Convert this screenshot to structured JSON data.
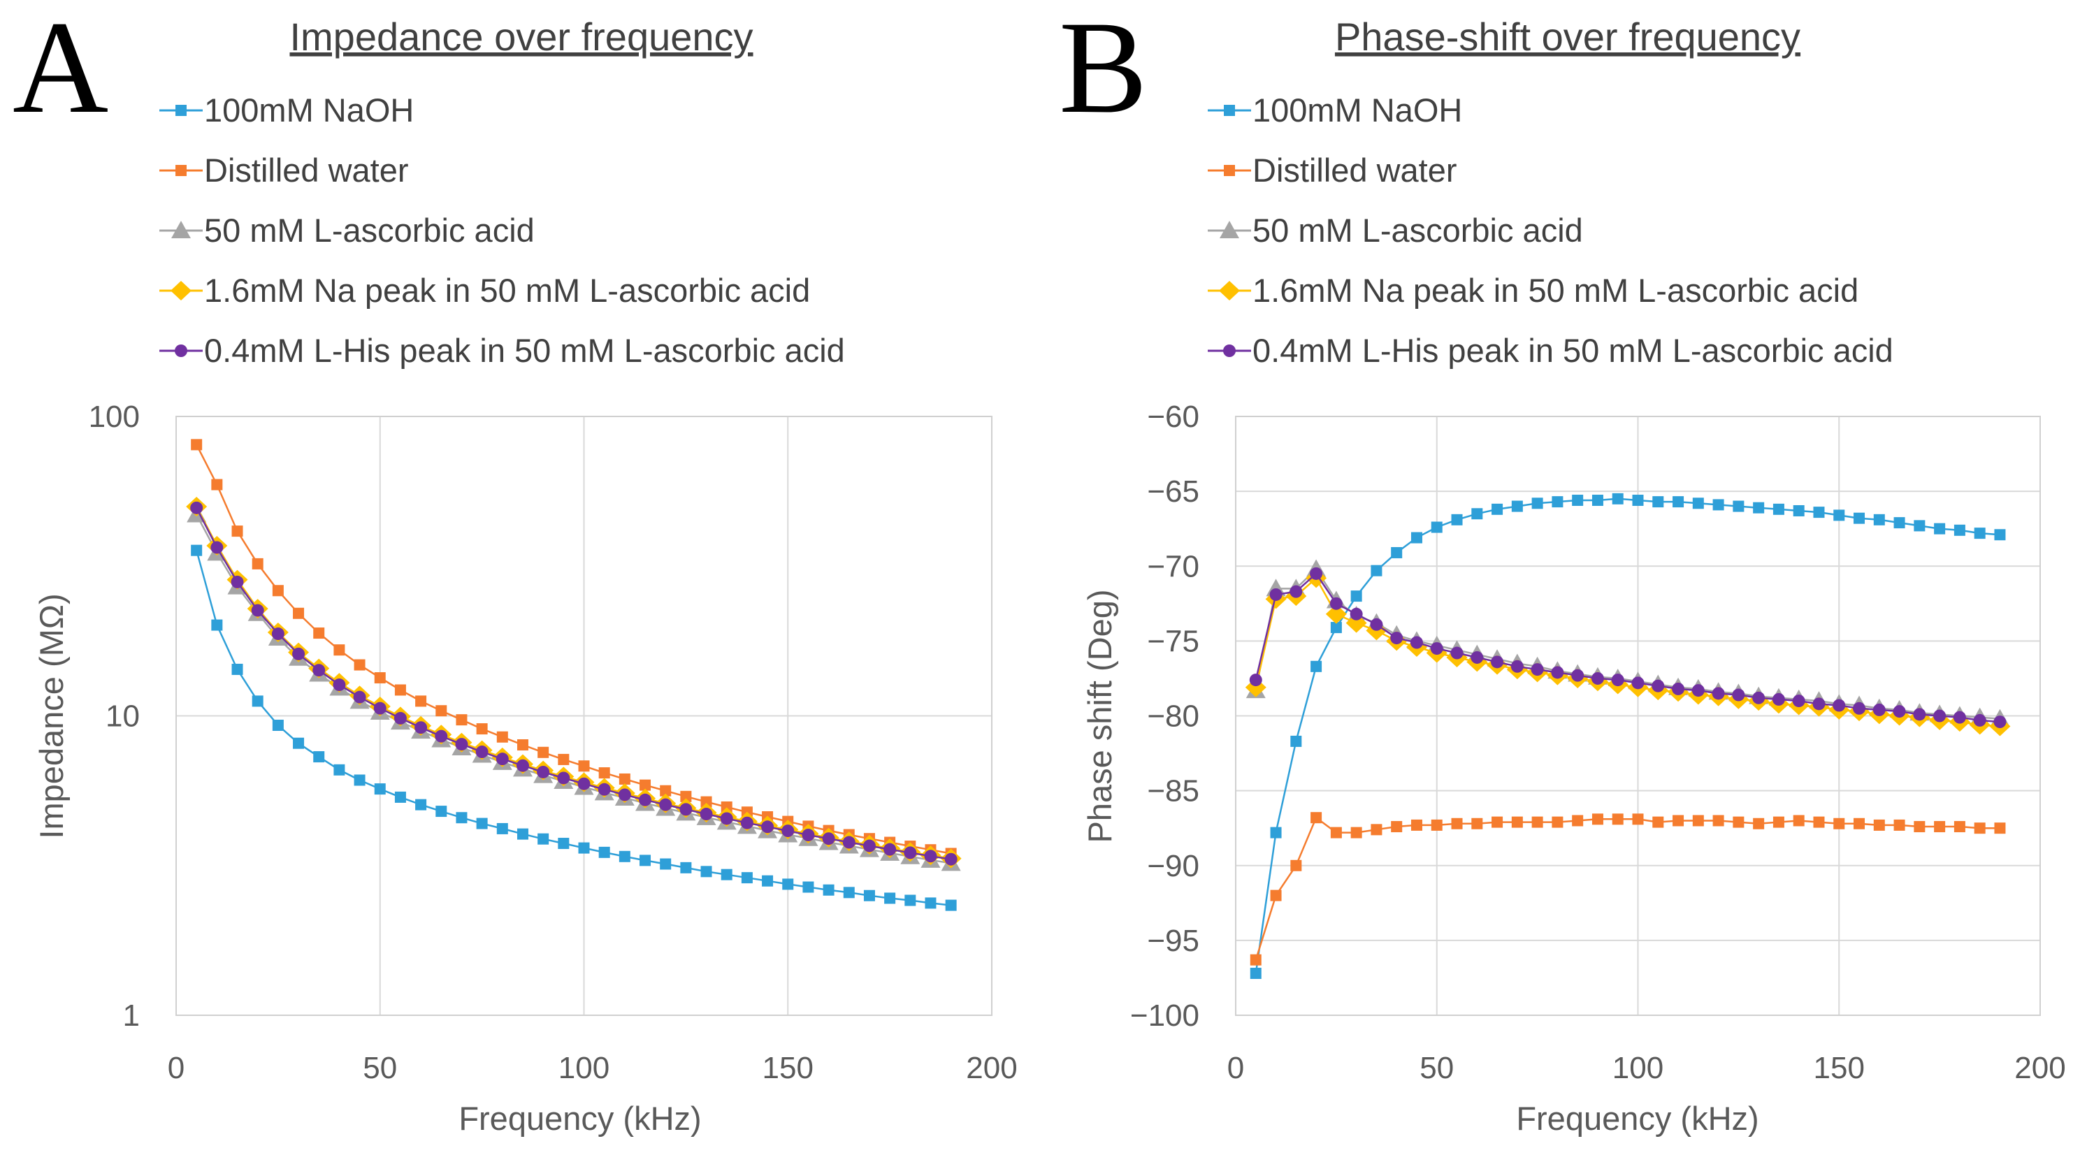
{
  "panels": [
    "A",
    "B"
  ],
  "colors": {
    "naoh": "#2E9FD8",
    "water": "#F57C2E",
    "ascorbic": "#A5A5A5",
    "na_peak": "#FFC000",
    "his_peak": "#7030A0"
  },
  "chart_data": [
    {
      "type": "line",
      "title": "Impedance over frequency",
      "xlabel": "Frequency (kHz)",
      "ylabel": "Impedance (MΩ)",
      "yscale": "log",
      "xlim": [
        0,
        200
      ],
      "ylim": [
        1,
        100
      ],
      "xticks": [
        0,
        50,
        100,
        150,
        200
      ],
      "yticks": [
        1,
        10,
        100
      ],
      "xtick_labels": [
        "0",
        "50",
        "100",
        "150",
        "200"
      ],
      "ytick_labels": [
        "1",
        "10",
        "100"
      ],
      "grid": true,
      "legend_position": "top",
      "x": [
        5,
        10,
        15,
        20,
        25,
        30,
        35,
        40,
        45,
        50,
        55,
        60,
        65,
        70,
        75,
        80,
        85,
        90,
        95,
        100,
        105,
        110,
        115,
        120,
        125,
        130,
        135,
        140,
        145,
        150,
        155,
        160,
        165,
        170,
        175,
        180,
        185,
        190
      ],
      "series": [
        {
          "name": "100mM NaOH",
          "marker": "square",
          "color_key": "naoh",
          "values": [
            35.7,
            20.1,
            14.3,
            11.2,
            9.3,
            8.1,
            7.3,
            6.6,
            6.1,
            5.7,
            5.35,
            5.05,
            4.8,
            4.57,
            4.37,
            4.2,
            4.03,
            3.88,
            3.75,
            3.62,
            3.5,
            3.39,
            3.29,
            3.2,
            3.11,
            3.02,
            2.95,
            2.88,
            2.81,
            2.74,
            2.68,
            2.62,
            2.57,
            2.51,
            2.46,
            2.42,
            2.37,
            2.33
          ]
        },
        {
          "name": "Distilled water",
          "marker": "square",
          "color_key": "water",
          "values": [
            80.5,
            59.2,
            41.4,
            32.2,
            26.2,
            22.0,
            18.9,
            16.6,
            14.8,
            13.4,
            12.2,
            11.2,
            10.4,
            9.7,
            9.05,
            8.5,
            8.0,
            7.55,
            7.15,
            6.8,
            6.45,
            6.15,
            5.87,
            5.62,
            5.38,
            5.16,
            4.96,
            4.77,
            4.6,
            4.44,
            4.28,
            4.14,
            4.01,
            3.89,
            3.78,
            3.67,
            3.57,
            3.47
          ]
        },
        {
          "name": "50 mM L-ascorbic acid",
          "marker": "triangle",
          "color_key": "ascorbic",
          "values": [
            47.0,
            35.0,
            27.0,
            22.0,
            18.2,
            15.6,
            13.8,
            12.4,
            11.2,
            10.3,
            9.55,
            8.9,
            8.33,
            7.83,
            7.4,
            7.0,
            6.65,
            6.33,
            6.05,
            5.78,
            5.54,
            5.32,
            5.11,
            4.92,
            4.74,
            4.58,
            4.42,
            4.28,
            4.14,
            4.01,
            3.9,
            3.78,
            3.68,
            3.58,
            3.48,
            3.39,
            3.3,
            3.22
          ]
        },
        {
          "name": "1.6mM Na peak in 50 mM L-ascorbic acid",
          "marker": "diamond",
          "color_key": "na_peak",
          "values": [
            50.0,
            37.0,
            28.5,
            22.8,
            19.0,
            16.3,
            14.4,
            12.9,
            11.7,
            10.75,
            9.95,
            9.26,
            8.66,
            8.14,
            7.68,
            7.27,
            6.9,
            6.57,
            6.27,
            6.0,
            5.75,
            5.52,
            5.3,
            5.1,
            4.92,
            4.75,
            4.59,
            4.44,
            4.3,
            4.17,
            4.04,
            3.92,
            3.81,
            3.71,
            3.61,
            3.51,
            3.42,
            3.34
          ]
        },
        {
          "name": "0.4mM L-His peak in 50 mM L-ascorbic acid",
          "marker": "circle",
          "color_key": "his_peak",
          "values": [
            49.5,
            36.5,
            28.0,
            22.5,
            18.8,
            16.1,
            14.2,
            12.7,
            11.55,
            10.6,
            9.82,
            9.14,
            8.55,
            8.04,
            7.58,
            7.18,
            6.82,
            6.49,
            6.2,
            5.93,
            5.68,
            5.45,
            5.24,
            5.05,
            4.87,
            4.7,
            4.54,
            4.39,
            4.26,
            4.13,
            4.0,
            3.89,
            3.78,
            3.68,
            3.58,
            3.49,
            3.4,
            3.32
          ]
        }
      ]
    },
    {
      "type": "line",
      "title": "Phase-shift over frequency",
      "xlabel": "Frequency (kHz)",
      "ylabel": "Phase shift (Deg)",
      "yscale": "linear",
      "xlim": [
        0,
        200
      ],
      "ylim": [
        -100,
        -60
      ],
      "xticks": [
        0,
        50,
        100,
        150,
        200
      ],
      "yticks": [
        -100,
        -95,
        -90,
        -85,
        -80,
        -75,
        -70,
        -65,
        -60
      ],
      "xtick_labels": [
        "0",
        "50",
        "100",
        "150",
        "200"
      ],
      "ytick_labels": [
        "−100",
        "−95",
        "−90",
        "−85",
        "−80",
        "−75",
        "−70",
        "−65",
        "−60"
      ],
      "grid": true,
      "legend_position": "top",
      "x": [
        5,
        10,
        15,
        20,
        25,
        30,
        35,
        40,
        45,
        50,
        55,
        60,
        65,
        70,
        75,
        80,
        85,
        90,
        95,
        100,
        105,
        110,
        115,
        120,
        125,
        130,
        135,
        140,
        145,
        150,
        155,
        160,
        165,
        170,
        175,
        180,
        185,
        190
      ],
      "series": [
        {
          "name": "100mM NaOH",
          "marker": "square",
          "color_key": "naoh",
          "values": [
            -97.2,
            -87.8,
            -81.7,
            -76.7,
            -74.1,
            -72.0,
            -70.3,
            -69.1,
            -68.1,
            -67.4,
            -66.9,
            -66.5,
            -66.2,
            -66.0,
            -65.8,
            -65.7,
            -65.6,
            -65.6,
            -65.5,
            -65.6,
            -65.7,
            -65.7,
            -65.8,
            -65.9,
            -66.0,
            -66.1,
            -66.2,
            -66.3,
            -66.4,
            -66.6,
            -66.8,
            -66.9,
            -67.1,
            -67.3,
            -67.5,
            -67.6,
            -67.8,
            -67.9
          ]
        },
        {
          "name": "Distilled water",
          "marker": "square",
          "color_key": "water",
          "values": [
            -96.3,
            -92.0,
            -90.0,
            -86.8,
            -87.8,
            -87.8,
            -87.6,
            -87.4,
            -87.3,
            -87.3,
            -87.2,
            -87.2,
            -87.1,
            -87.1,
            -87.1,
            -87.1,
            -87.0,
            -86.9,
            -86.9,
            -86.9,
            -87.1,
            -87.0,
            -87.0,
            -87.0,
            -87.1,
            -87.2,
            -87.1,
            -87.0,
            -87.1,
            -87.2,
            -87.2,
            -87.3,
            -87.3,
            -87.4,
            -87.4,
            -87.4,
            -87.5,
            -87.5
          ]
        },
        {
          "name": "50 mM L-ascorbic acid",
          "marker": "triangle",
          "color_key": "ascorbic",
          "values": [
            -78.3,
            -71.5,
            -71.5,
            -70.2,
            -72.3,
            -73.3,
            -73.8,
            -74.6,
            -75.0,
            -75.3,
            -75.6,
            -75.9,
            -76.2,
            -76.5,
            -76.7,
            -77.0,
            -77.2,
            -77.4,
            -77.5,
            -77.7,
            -77.9,
            -78.1,
            -78.2,
            -78.4,
            -78.5,
            -78.7,
            -78.8,
            -78.9,
            -79.0,
            -79.2,
            -79.3,
            -79.5,
            -79.6,
            -79.8,
            -79.9,
            -80.0,
            -80.1,
            -80.2
          ]
        },
        {
          "name": "1.6mM Na peak in 50 mM L-ascorbic acid",
          "marker": "diamond",
          "color_key": "na_peak",
          "values": [
            -78.1,
            -72.2,
            -72.0,
            -70.8,
            -73.2,
            -73.8,
            -74.3,
            -75.0,
            -75.4,
            -75.8,
            -76.1,
            -76.4,
            -76.6,
            -76.9,
            -77.1,
            -77.3,
            -77.5,
            -77.7,
            -77.9,
            -78.1,
            -78.3,
            -78.4,
            -78.6,
            -78.7,
            -78.9,
            -79.0,
            -79.2,
            -79.3,
            -79.4,
            -79.6,
            -79.7,
            -79.9,
            -80.0,
            -80.1,
            -80.3,
            -80.4,
            -80.6,
            -80.7
          ]
        },
        {
          "name": "0.4mM L-His peak in 50 mM L-ascorbic acid",
          "marker": "circle",
          "color_key": "his_peak",
          "values": [
            -77.6,
            -71.9,
            -71.7,
            -70.5,
            -72.5,
            -73.2,
            -73.9,
            -74.8,
            -75.1,
            -75.5,
            -75.8,
            -76.1,
            -76.4,
            -76.7,
            -76.9,
            -77.1,
            -77.3,
            -77.5,
            -77.6,
            -77.8,
            -78.0,
            -78.2,
            -78.3,
            -78.5,
            -78.6,
            -78.8,
            -78.9,
            -79.0,
            -79.2,
            -79.3,
            -79.5,
            -79.6,
            -79.7,
            -79.9,
            -80.0,
            -80.1,
            -80.3,
            -80.4
          ]
        }
      ]
    }
  ]
}
